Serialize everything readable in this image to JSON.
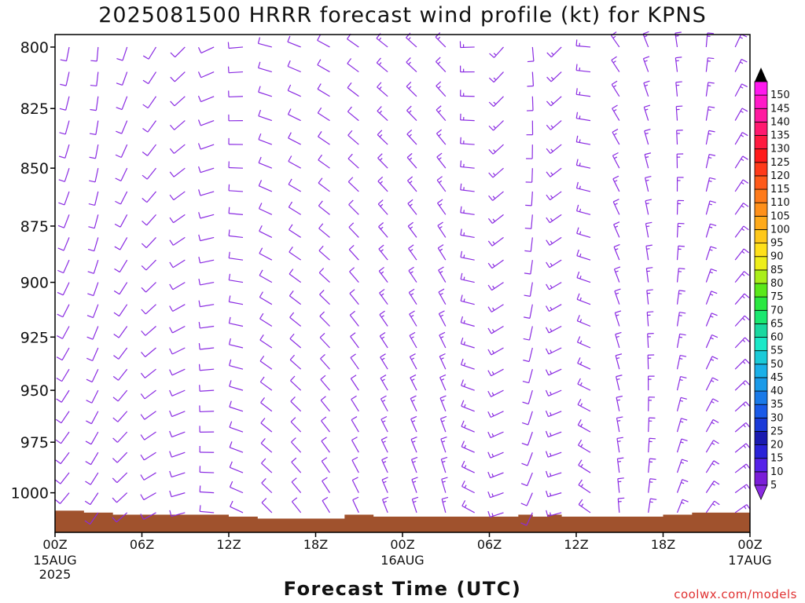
{
  "chart_data": {
    "type": "wind-barb profile",
    "title": "2025081500 HRRR forecast wind profile (kt) for KPNS",
    "xlabel": "Forecast Time (UTC)",
    "ylabel": "",
    "y_axis": {
      "reversed": true,
      "range": [
        795,
        1020
      ],
      "ticks": [
        800,
        825,
        850,
        875,
        900,
        925,
        950,
        975,
        1000
      ]
    },
    "x_axis": {
      "range_hours": [
        0,
        48
      ],
      "ticks": [
        {
          "hour": 0,
          "label": "00Z",
          "sub": [
            "15AUG",
            "2025"
          ]
        },
        {
          "hour": 6,
          "label": "06Z",
          "sub": []
        },
        {
          "hour": 12,
          "label": "12Z",
          "sub": []
        },
        {
          "hour": 18,
          "label": "18Z",
          "sub": []
        },
        {
          "hour": 24,
          "label": "00Z",
          "sub": [
            "16AUG"
          ]
        },
        {
          "hour": 30,
          "label": "06Z",
          "sub": []
        },
        {
          "hour": 36,
          "label": "12Z",
          "sub": []
        },
        {
          "hour": 42,
          "label": "18Z",
          "sub": []
        },
        {
          "hour": 48,
          "label": "00Z",
          "sub": [
            "17AUG"
          ]
        }
      ]
    },
    "barb_time_step_hours": 2,
    "barb_levels_hPa": [
      800,
      810,
      820,
      830,
      840,
      850,
      860,
      870,
      880,
      890,
      900,
      910,
      920,
      930,
      940,
      950,
      960,
      970,
      980,
      990,
      1000,
      1010
    ],
    "wind_profile": [
      {
        "hour": 2,
        "dir_deg": 200,
        "speed_kt": 10
      },
      {
        "hour": 8,
        "dir_deg": 240,
        "speed_kt": 10
      },
      {
        "hour": 14,
        "dir_deg": 300,
        "speed_kt": 10
      },
      {
        "hour": 20,
        "dir_deg": 320,
        "speed_kt": 10
      },
      {
        "hour": 26,
        "dir_deg": 330,
        "speed_kt": 5
      },
      {
        "hour": 32,
        "dir_deg": 190,
        "speed_kt": 10
      },
      {
        "hour": 38,
        "dir_deg": 340,
        "speed_kt": 5
      },
      {
        "hour": 44,
        "dir_deg": 20,
        "speed_kt": 5
      },
      {
        "hour": 48,
        "dir_deg": 60,
        "speed_kt": 5
      }
    ],
    "surface_pressure": [
      {
        "hour": 0,
        "hPa": 1009
      },
      {
        "hour": 2,
        "hPa": 1010
      },
      {
        "hour": 4,
        "hPa": 1011
      },
      {
        "hour": 10,
        "hPa": 1011
      },
      {
        "hour": 12,
        "hPa": 1012
      },
      {
        "hour": 14,
        "hPa": 1013
      },
      {
        "hour": 18,
        "hPa": 1013
      },
      {
        "hour": 20,
        "hPa": 1011
      },
      {
        "hour": 22,
        "hPa": 1012
      },
      {
        "hour": 30,
        "hPa": 1012
      },
      {
        "hour": 32,
        "hPa": 1011
      },
      {
        "hour": 33,
        "hPa": 1012
      },
      {
        "hour": 34,
        "hPa": 1011
      },
      {
        "hour": 35,
        "hPa": 1012
      },
      {
        "hour": 42,
        "hPa": 1011
      },
      {
        "hour": 44,
        "hPa": 1010
      },
      {
        "hour": 48,
        "hPa": 1009
      }
    ],
    "ground_color": "#a0522d",
    "barb_color": "#8a2be2",
    "strong_barb_color": "#3a33c8",
    "colorbar": {
      "labels": [
        "5",
        "10",
        "15",
        "20",
        "25",
        "30",
        "35",
        "40",
        "45",
        "50",
        "55",
        "60",
        "65",
        "70",
        "75",
        "80",
        "85",
        "90",
        "95",
        "100",
        "105",
        "110",
        "115",
        "120",
        "125",
        "130",
        "135",
        "140",
        "145",
        "150"
      ],
      "bin_colors": [
        "#7a1dd8",
        "#5522e8",
        "#2a22d8",
        "#1a1ab0",
        "#1a3ad8",
        "#1a5ae8",
        "#1a7ae8",
        "#1a9ae8",
        "#1ab0e8",
        "#1acad8",
        "#1ae8c8",
        "#1ad8a0",
        "#1ae870",
        "#2ae840",
        "#5ae81a",
        "#aaee1a",
        "#eeee1a",
        "#ffe01a",
        "#ffc81a",
        "#ffaa1a",
        "#ff901a",
        "#ff7a1a",
        "#ff5a1a",
        "#ff3a1a",
        "#ff1a1a",
        "#ff1a40",
        "#ff1a70",
        "#ff1aa0",
        "#ff1ac8",
        "#ff1aee"
      ],
      "top_arrow_color": "#000000",
      "bottom_arrow_color": "#8a2be2"
    }
  },
  "credit": "coolwx.com/models"
}
